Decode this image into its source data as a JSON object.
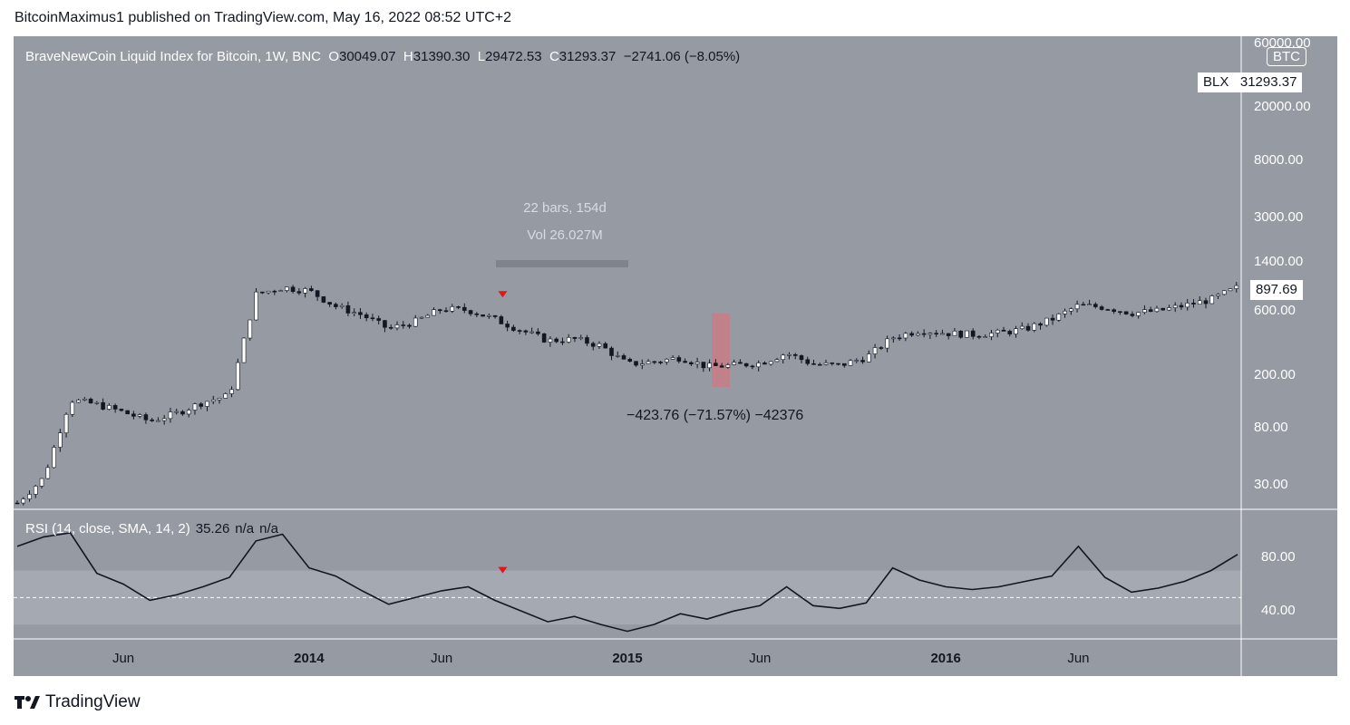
{
  "publisher_line": "BitcoinMaximus1 published on TradingView.com, May 16, 2022 08:52 UTC+2",
  "legend": {
    "symbol_desc": "BraveNewCoin Liquid Index for Bitcoin, 1W, BNC",
    "o_label": "O",
    "o_val": "30049.07",
    "h_label": "H",
    "h_val": "31390.30",
    "l_label": "L",
    "l_val": "29472.53",
    "c_label": "C",
    "c_val": "31293.37",
    "change": "−2741.06 (−8.05%)"
  },
  "currency_badge": "BTC",
  "price_tags": {
    "blx_name": "BLX",
    "blx_value": "31293.37",
    "cursor_value": "897.69"
  },
  "measure": {
    "bars": "22 bars, 154d",
    "vol": "Vol 26.027M",
    "change": "−423.76 (−71.57%) −42376"
  },
  "rsi_legend": {
    "label": "RSI (14, close, SMA, 14, 2)",
    "value": "35.26",
    "na1": "n/a",
    "na2": "n/a"
  },
  "footer": {
    "brand": "TradingView"
  },
  "colors": {
    "pane_bg": "#959aa3",
    "rsi_band": "#a5a9b1",
    "up_candle": "#ffffff",
    "down_candle": "#131722",
    "marker": "#e0161b",
    "highlight": "#c97d86"
  },
  "chart_data": [
    {
      "type": "candlestick",
      "title": "BraveNewCoin Liquid Index for Bitcoin, 1W, BNC",
      "y_scale": "log",
      "ylim": [
        22,
        60000
      ],
      "y_ticks": [
        "60000.00",
        "20000.00",
        "8000.00",
        "3000.00",
        "1400.00",
        "600.00",
        "200.00",
        "80.00",
        "30.00"
      ],
      "x_ticks": [
        "Jun",
        "2014",
        "Jun",
        "2015",
        "Jun",
        "2016",
        "Jun"
      ],
      "x_range": [
        "2013-02",
        "2016-12"
      ],
      "weekly_close_approx": {
        "dates": [
          "2013-02",
          "2013-03",
          "2013-04",
          "2013-05",
          "2013-06",
          "2013-07",
          "2013-08",
          "2013-09",
          "2013-10",
          "2013-11",
          "2013-12",
          "2014-01",
          "2014-02",
          "2014-03",
          "2014-04",
          "2014-05",
          "2014-06",
          "2014-07",
          "2014-08",
          "2014-09",
          "2014-10",
          "2014-11",
          "2014-12",
          "2015-01",
          "2015-02",
          "2015-03",
          "2015-04",
          "2015-05",
          "2015-06",
          "2015-07",
          "2015-08",
          "2015-09",
          "2015-10",
          "2015-11",
          "2015-12",
          "2016-01",
          "2016-02",
          "2016-03",
          "2016-04",
          "2016-05",
          "2016-06",
          "2016-07",
          "2016-08",
          "2016-09",
          "2016-10",
          "2016-11",
          "2016-12"
        ],
        "values": [
          22,
          34,
          130,
          120,
          105,
          90,
          103,
          125,
          140,
          800,
          900,
          850,
          650,
          560,
          440,
          500,
          620,
          610,
          520,
          430,
          360,
          370,
          330,
          240,
          250,
          270,
          230,
          235,
          245,
          290,
          240,
          235,
          270,
          380,
          430,
          410,
          400,
          410,
          440,
          520,
          660,
          640,
          580,
          600,
          660,
          730,
          900
        ]
      },
      "annotations": [
        {
          "type": "measure",
          "text": "22 bars, 154d"
        },
        {
          "type": "measure",
          "text": "Vol 26.027M"
        },
        {
          "type": "price_range",
          "text": "−423.76 (−71.57%) −42376"
        }
      ]
    },
    {
      "type": "line",
      "title": "RSI (14, close, SMA, 14, 2)",
      "ylim": [
        20,
        100
      ],
      "y_ticks": [
        "80.00",
        "40.00"
      ],
      "bands": [
        30,
        70
      ],
      "midline": 50,
      "x": [
        "2013-02",
        "2013-03",
        "2013-04",
        "2013-05",
        "2013-06",
        "2013-07",
        "2013-08",
        "2013-09",
        "2013-10",
        "2013-11",
        "2013-12",
        "2014-01",
        "2014-02",
        "2014-03",
        "2014-04",
        "2014-05",
        "2014-06",
        "2014-07",
        "2014-08",
        "2014-09",
        "2014-10",
        "2014-11",
        "2014-12",
        "2015-01",
        "2015-02",
        "2015-03",
        "2015-04",
        "2015-05",
        "2015-06",
        "2015-07",
        "2015-08",
        "2015-09",
        "2015-10",
        "2015-11",
        "2015-12",
        "2016-01",
        "2016-02",
        "2016-03",
        "2016-04",
        "2016-05",
        "2016-06",
        "2016-07",
        "2016-08",
        "2016-09",
        "2016-10",
        "2016-11",
        "2016-12"
      ],
      "values": [
        88,
        95,
        98,
        68,
        60,
        48,
        52,
        58,
        65,
        92,
        97,
        72,
        66,
        55,
        45,
        50,
        55,
        58,
        48,
        40,
        32,
        36,
        30,
        25,
        30,
        38,
        34,
        40,
        44,
        58,
        44,
        42,
        46,
        72,
        63,
        58,
        56,
        58,
        62,
        66,
        88,
        65,
        54,
        57,
        62,
        70,
        82
      ]
    }
  ]
}
